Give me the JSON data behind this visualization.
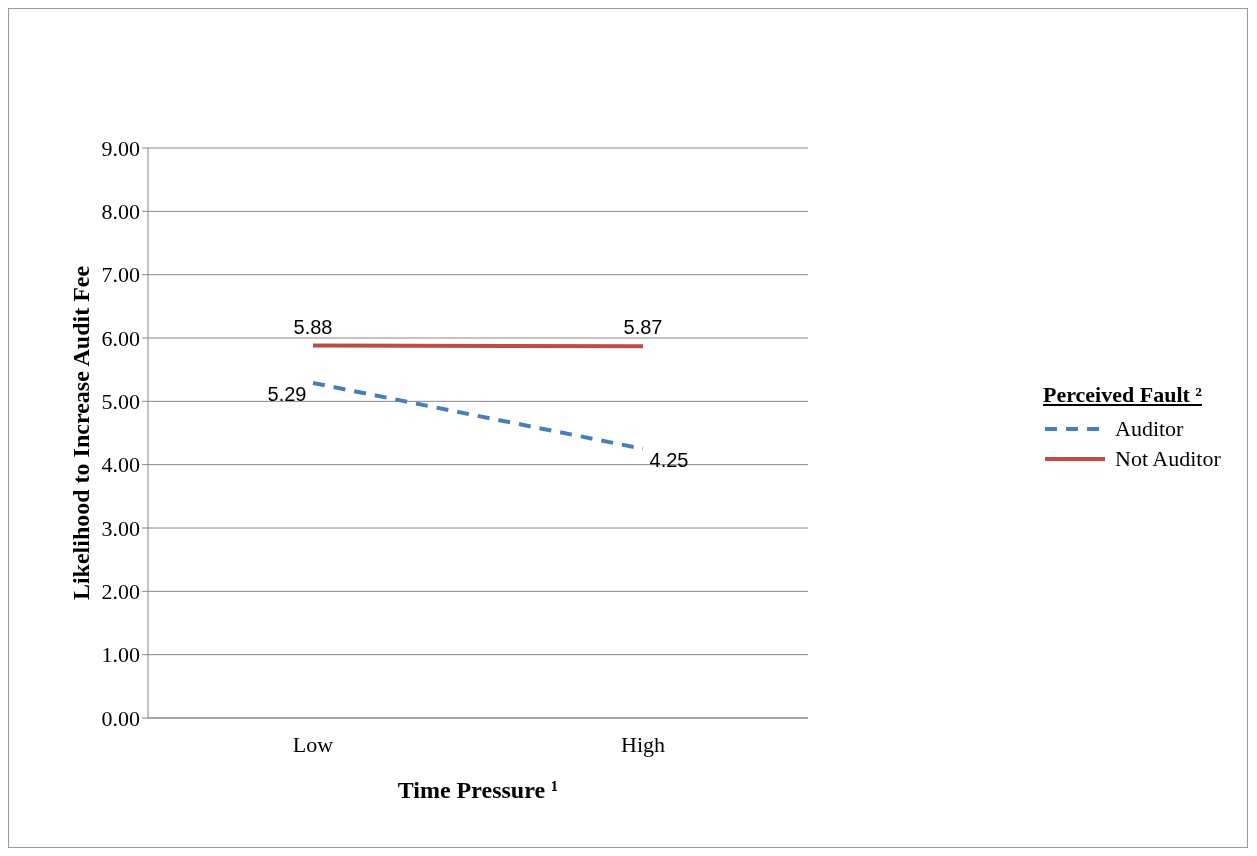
{
  "chart_data": {
    "type": "line",
    "xlabel": "Time Pressure ¹",
    "ylabel": "Likelihood to Increase Audit Fee",
    "legend_title": "Perceived Fault ²",
    "categories": [
      "Low",
      "High"
    ],
    "series": [
      {
        "name": "Auditor",
        "color": "#4a7ebb",
        "values": [
          5.29,
          4.25
        ],
        "line_style": "dashed"
      },
      {
        "name": "Not Auditor",
        "color": "#be4b48",
        "values": [
          5.88,
          5.87
        ],
        "line_style": "solid"
      }
    ],
    "ylim": [
      0,
      9
    ],
    "yticks": [
      {
        "value": 0,
        "label": "0.00"
      },
      {
        "value": 1,
        "label": "1.00"
      },
      {
        "value": 2,
        "label": "2.00"
      },
      {
        "value": 3,
        "label": "3.00"
      },
      {
        "value": 4,
        "label": "4.00"
      },
      {
        "value": 5,
        "label": "5.00"
      },
      {
        "value": 6,
        "label": "6.00"
      },
      {
        "value": 7,
        "label": "7.00"
      },
      {
        "value": 8,
        "label": "8.00"
      },
      {
        "value": 9,
        "label": "9.00"
      }
    ],
    "grid": "y",
    "legend": "right",
    "marker": "none",
    "data_labels": true
  }
}
